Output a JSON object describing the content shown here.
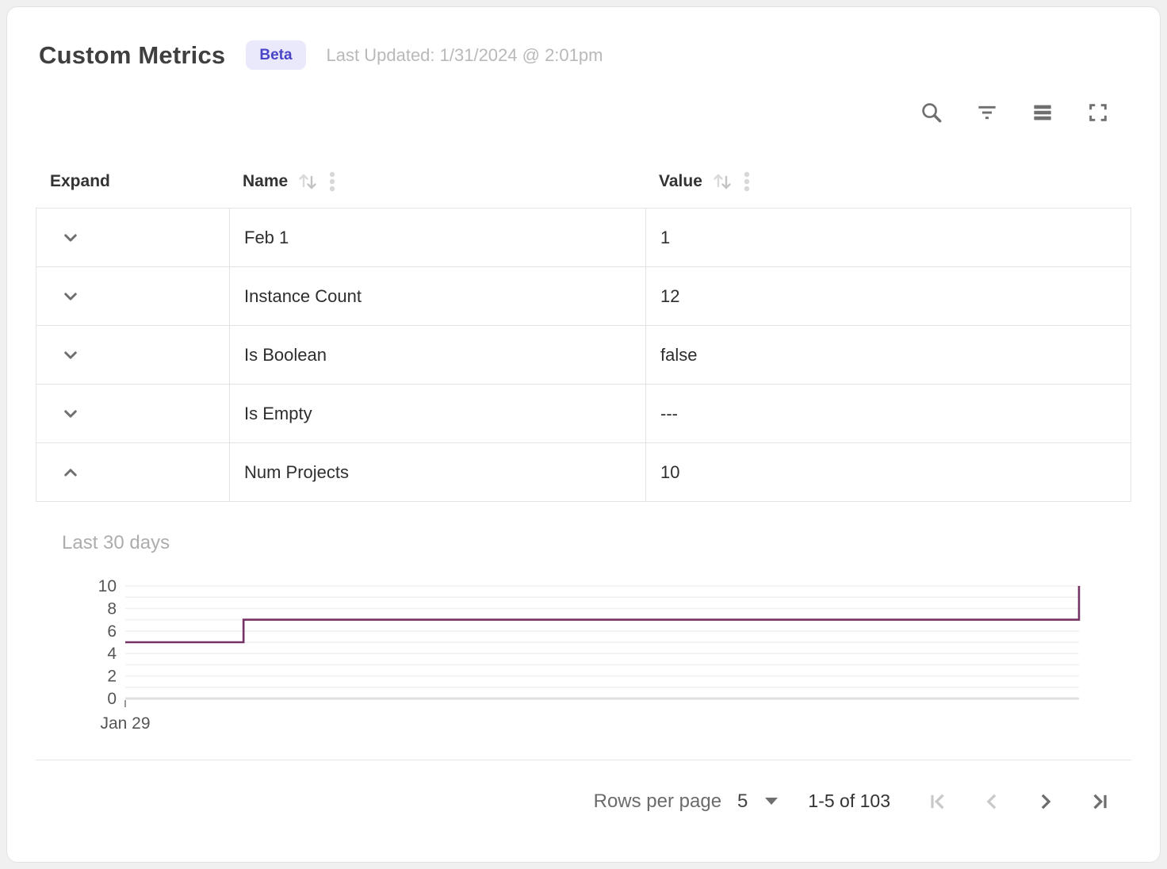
{
  "header": {
    "title": "Custom Metrics",
    "badge": "Beta",
    "last_updated": "Last Updated: 1/31/2024 @ 2:01pm"
  },
  "toolbar": {
    "icons": [
      "search-icon",
      "filter-icon",
      "density-icon",
      "fullscreen-icon"
    ]
  },
  "table": {
    "columns": [
      {
        "label": "Expand",
        "sortable": false
      },
      {
        "label": "Name",
        "sortable": true
      },
      {
        "label": "Value",
        "sortable": true
      }
    ],
    "rows": [
      {
        "name": "Feb 1",
        "value": "1",
        "expanded": false
      },
      {
        "name": "Instance Count",
        "value": "12",
        "expanded": false
      },
      {
        "name": "Is Boolean",
        "value": "false",
        "expanded": false
      },
      {
        "name": "Is Empty",
        "value": "---",
        "expanded": false
      },
      {
        "name": "Num Projects",
        "value": "10",
        "expanded": true
      }
    ]
  },
  "chart_data": {
    "type": "line",
    "subtype": "step",
    "title": "Last 30 days",
    "series": [
      {
        "name": "Num Projects",
        "points": [
          {
            "x": 0,
            "y": 5
          },
          {
            "x": 0.124,
            "y": 5
          },
          {
            "x": 0.124,
            "y": 7
          },
          {
            "x": 1,
            "y": 7
          },
          {
            "x": 1,
            "y": 10
          }
        ]
      }
    ],
    "ylim": [
      0,
      10
    ],
    "y_ticks": [
      0,
      2,
      4,
      6,
      8,
      10
    ],
    "minor_grid_step": 1,
    "x_tick_labels": [
      "Jan 29"
    ],
    "grid": true,
    "legend": false,
    "line_color": "#753264",
    "grid_color": "#f1f1f1",
    "baseline_color": "#e0e0e0",
    "tick_text_color": "#555555"
  },
  "pagination": {
    "rows_per_page_label": "Rows per page",
    "rows_per_page_value": "5",
    "range_label": "1-5 of 103",
    "first_enabled": false,
    "prev_enabled": false,
    "next_enabled": true,
    "last_enabled": true
  },
  "colors": {
    "badge_bg": "#eae9fb",
    "badge_text": "#4a44c6",
    "title_text": "#3f3f3f",
    "muted_text": "#b9b9b9",
    "border": "#e3e3e3",
    "icon": "#6f6f6f",
    "chart_line": "#753264"
  }
}
